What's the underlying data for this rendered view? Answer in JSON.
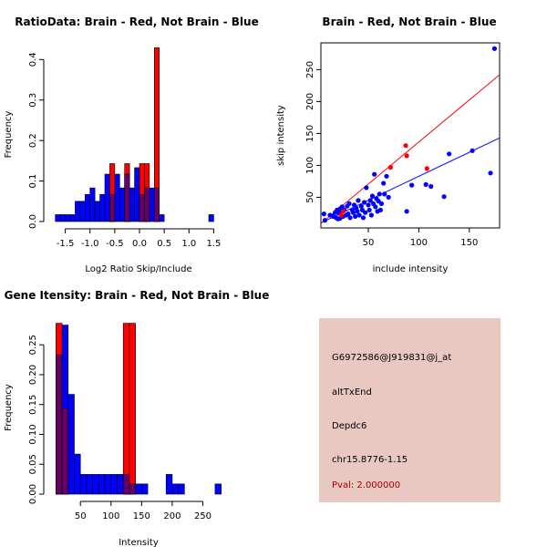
{
  "chart_data": [
    {
      "type": "bar",
      "subtype": "histogram",
      "title": "RatioData: Brain - Red, Not Brain - Blue",
      "xlabel": "Log2 Ratio Skip/Include",
      "ylabel": "Frequency",
      "xlim": [
        -1.75,
        1.75
      ],
      "ylim": [
        0,
        0.43
      ],
      "xticks": [
        -1.5,
        -1.0,
        -0.5,
        0.0,
        0.5,
        1.0,
        1.5
      ],
      "xtick_labels": [
        "-1.5",
        "-1.0",
        "-0.5",
        "0.0",
        "0.5",
        "1.0",
        "1.5"
      ],
      "yticks": [
        0,
        0.1,
        0.2,
        0.3,
        0.4
      ],
      "ytick_labels": [
        "0.0",
        "0.1",
        "0.2",
        "0.3",
        "0.4"
      ],
      "bin_width": 0.1,
      "series": [
        {
          "name": "Not Brain",
          "color": "#0000ff",
          "overlap_color": "#660066",
          "bins": [
            [
              -1.7,
              0.017
            ],
            [
              -1.6,
              0.017
            ],
            [
              -1.5,
              0.017
            ],
            [
              -1.4,
              0.017
            ],
            [
              -1.3,
              0.05
            ],
            [
              -1.2,
              0.05
            ],
            [
              -1.1,
              0.067
            ],
            [
              -1.0,
              0.083
            ],
            [
              -0.9,
              0.05
            ],
            [
              -0.8,
              0.067
            ],
            [
              -0.7,
              0.117
            ],
            [
              -0.6,
              0.067
            ],
            [
              -0.5,
              0.117
            ],
            [
              -0.4,
              0.083
            ],
            [
              -0.3,
              0.117
            ],
            [
              -0.2,
              0.083
            ],
            [
              -0.1,
              0.133
            ],
            [
              0.0,
              0.067
            ],
            [
              0.1,
              0.083
            ],
            [
              0.2,
              0.083
            ],
            [
              0.3,
              0.083
            ],
            [
              0.4,
              0.017
            ],
            [
              1.4,
              0.017
            ]
          ]
        },
        {
          "name": "Brain",
          "color": "#ff0000",
          "bins": [
            [
              -0.6,
              0.143
            ],
            [
              -0.3,
              0.143
            ],
            [
              0.0,
              0.143
            ],
            [
              0.1,
              0.143
            ],
            [
              0.3,
              0.429
            ]
          ]
        }
      ]
    },
    {
      "type": "scatter",
      "title": "Brain - Red, Not Brain - Blue",
      "xlabel": "include intensity",
      "ylabel": "skip intensity",
      "xlim": [
        3,
        180
      ],
      "ylim": [
        2,
        292
      ],
      "xticks": [
        50,
        100,
        150
      ],
      "yticks": [
        50,
        100,
        150,
        200,
        250
      ],
      "series": [
        {
          "name": "Not Brain",
          "color": "#0000ff",
          "points": [
            [
              6,
              24
            ],
            [
              7,
              14
            ],
            [
              12,
              22
            ],
            [
              15,
              20
            ],
            [
              17,
              26
            ],
            [
              18,
              18
            ],
            [
              19,
              30
            ],
            [
              20,
              16
            ],
            [
              21,
              25
            ],
            [
              22,
              32
            ],
            [
              22,
              17
            ],
            [
              23,
              28
            ],
            [
              24,
              35
            ],
            [
              25,
              20
            ],
            [
              26,
              30
            ],
            [
              28,
              22
            ],
            [
              29,
              36
            ],
            [
              30,
              24
            ],
            [
              31,
              40
            ],
            [
              32,
              18
            ],
            [
              34,
              30
            ],
            [
              35,
              26
            ],
            [
              36,
              38
            ],
            [
              37,
              20
            ],
            [
              38,
              33
            ],
            [
              39,
              28
            ],
            [
              40,
              45
            ],
            [
              41,
              22
            ],
            [
              43,
              36
            ],
            [
              44,
              30
            ],
            [
              45,
              18
            ],
            [
              46,
              42
            ],
            [
              47,
              26
            ],
            [
              48,
              65
            ],
            [
              50,
              38
            ],
            [
              51,
              30
            ],
            [
              52,
              45
            ],
            [
              53,
              22
            ],
            [
              54,
              52
            ],
            [
              55,
              40
            ],
            [
              56,
              86
            ],
            [
              57,
              35
            ],
            [
              58,
              48
            ],
            [
              59,
              28
            ],
            [
              60,
              44
            ],
            [
              61,
              55
            ],
            [
              62,
              30
            ],
            [
              63,
              40
            ],
            [
              65,
              72
            ],
            [
              66,
              55
            ],
            [
              68,
              83
            ],
            [
              70,
              50
            ],
            [
              88,
              28
            ],
            [
              93,
              69
            ],
            [
              107,
              70
            ],
            [
              112,
              67
            ],
            [
              125,
              51
            ],
            [
              130,
              118
            ],
            [
              153,
              123
            ],
            [
              171,
              88
            ],
            [
              175,
              283
            ]
          ],
          "fit_line": [
            [
              3,
              10
            ],
            [
              180,
              143
            ]
          ]
        },
        {
          "name": "Brain",
          "color": "#ff0000",
          "points": [
            [
              23,
              22
            ],
            [
              25,
              28
            ],
            [
              72,
              97
            ],
            [
              87,
              131
            ],
            [
              88,
              115
            ],
            [
              108,
              95
            ]
          ],
          "fit_line": [
            [
              3,
              9
            ],
            [
              180,
              242
            ]
          ]
        }
      ]
    },
    {
      "type": "bar",
      "subtype": "histogram",
      "title": "Gene Itensity: Brain - Red, Not Brain - Blue",
      "xlabel": "Intensity",
      "ylabel": "Frequency",
      "xlim": [
        5,
        288
      ],
      "ylim": [
        0,
        0.29
      ],
      "xticks": [
        50,
        100,
        150,
        200,
        250
      ],
      "yticks": [
        0,
        0.05,
        0.1,
        0.15,
        0.2,
        0.25
      ],
      "ytick_labels": [
        "0.00",
        "0.05",
        "0.10",
        "0.15",
        "0.20",
        "0.25"
      ],
      "bin_width": 10,
      "series": [
        {
          "name": "Not Brain",
          "color": "#0000ff",
          "overlap_color": "#660066",
          "bins": [
            [
              10,
              0.233
            ],
            [
              20,
              0.283
            ],
            [
              30,
              0.167
            ],
            [
              40,
              0.067
            ],
            [
              50,
              0.033
            ],
            [
              60,
              0.033
            ],
            [
              70,
              0.033
            ],
            [
              80,
              0.033
            ],
            [
              90,
              0.033
            ],
            [
              100,
              0.033
            ],
            [
              110,
              0.033
            ],
            [
              120,
              0.033
            ],
            [
              130,
              0.017
            ],
            [
              140,
              0.017
            ],
            [
              150,
              0.017
            ],
            [
              190,
              0.033
            ],
            [
              200,
              0.017
            ],
            [
              210,
              0.017
            ],
            [
              270,
              0.017
            ]
          ]
        },
        {
          "name": "Brain",
          "color": "#ff0000",
          "bins": [
            [
              10,
              0.286
            ],
            [
              20,
              0.143
            ],
            [
              120,
              0.286
            ],
            [
              130,
              0.286
            ]
          ]
        }
      ]
    }
  ],
  "info": {
    "probe_id": "G6972586@J919831@j_at",
    "event": "altTxEnd",
    "gene": "Depdc6",
    "location": "chr15.8776-1.15",
    "pval": "Pval: 2.000000",
    "pval_color": "#aa0000"
  }
}
